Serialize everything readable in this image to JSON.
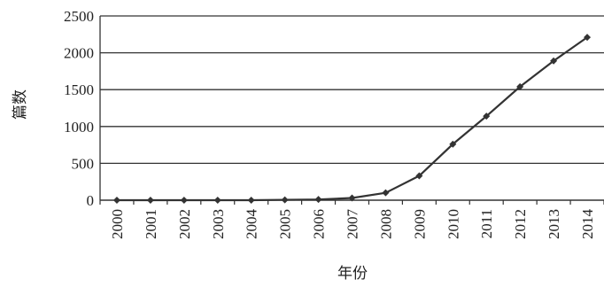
{
  "chart_data": {
    "type": "line",
    "title": "",
    "xlabel": "年份",
    "ylabel": "篇数",
    "categories": [
      "2000",
      "2001",
      "2002",
      "2003",
      "2004",
      "2005",
      "2006",
      "2007",
      "2008",
      "2009",
      "2010",
      "2011",
      "2012",
      "2013",
      "2014"
    ],
    "series": [
      {
        "values": [
          0,
          0,
          0,
          0,
          0,
          5,
          10,
          30,
          100,
          330,
          760,
          1140,
          1540,
          1890,
          2210
        ]
      }
    ],
    "ylim": [
      0,
      2500
    ],
    "yticks": [
      "0",
      "500",
      "1000",
      "1500",
      "2000",
      "2500"
    ],
    "grid": "horizontal",
    "legend": "none",
    "colors": {
      "line": "#333333",
      "grid": "#333333",
      "marker": "#333333"
    }
  }
}
